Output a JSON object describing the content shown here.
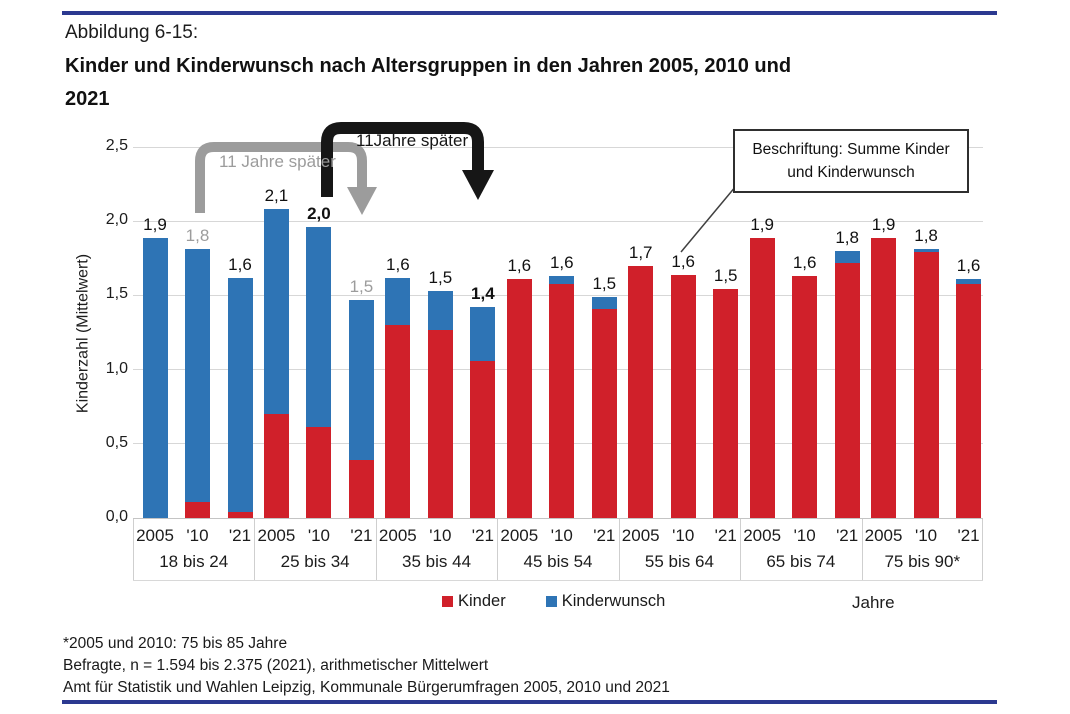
{
  "page": {
    "figure_label": "Abbildung 6-15:",
    "title_line1": "Kinder und Kinderwunsch nach Altersgruppen in den Jahren 2005, 2010 und",
    "title_line2": "2021",
    "footnotes": [
      "*2005 und 2010: 75 bis 85 Jahre",
      "Befragte, n = 1.594 bis 2.375 (2021), arithmetischer Mittelwert",
      "Amt für Statistik und Wahlen Leipzig, Kommunale Bürgerumfragen 2005, 2010 und 2021"
    ]
  },
  "chart_data": {
    "type": "bar",
    "stacked": true,
    "title": "Kinder und Kinderwunsch nach Altersgruppen in den Jahren 2005, 2010 und 2021",
    "ylabel": "Kinderzahl (Mittelwert)",
    "xlabel": "Jahre",
    "ylim": [
      0,
      2.5
    ],
    "ytick_labels": [
      "0,0",
      "0,5",
      "1,0",
      "1,5",
      "2,0",
      "2,5"
    ],
    "grid": true,
    "legend_position": "bottom",
    "legend": [
      {
        "name": "Kinder",
        "color": "#d0202a"
      },
      {
        "name": "Kinderwunsch",
        "color": "#2e74b5"
      }
    ],
    "groups": [
      {
        "label": "18 bis 24",
        "bars": [
          {
            "year": "2005",
            "kinder": 0.0,
            "kinderwunsch": 1.89,
            "total_label": "1,9"
          },
          {
            "year": "'10",
            "kinder": 0.11,
            "kinderwunsch": 1.7,
            "total_label": "1,8",
            "emphasis": "gray"
          },
          {
            "year": "'21",
            "kinder": 0.04,
            "kinderwunsch": 1.58,
            "total_label": "1,6"
          }
        ]
      },
      {
        "label": "25 bis 34",
        "bars": [
          {
            "year": "2005",
            "kinder": 0.7,
            "kinderwunsch": 1.38,
            "total_label": "2,1"
          },
          {
            "year": "'10",
            "kinder": 0.61,
            "kinderwunsch": 1.35,
            "total_label": "2,0",
            "emphasis": "bold"
          },
          {
            "year": "'21",
            "kinder": 0.39,
            "kinderwunsch": 1.08,
            "total_label": "1,5",
            "emphasis": "gray"
          }
        ]
      },
      {
        "label": "35 bis 44",
        "bars": [
          {
            "year": "2005",
            "kinder": 1.3,
            "kinderwunsch": 0.32,
            "total_label": "1,6"
          },
          {
            "year": "'10",
            "kinder": 1.27,
            "kinderwunsch": 0.26,
            "total_label": "1,5"
          },
          {
            "year": "'21",
            "kinder": 1.06,
            "kinderwunsch": 0.36,
            "total_label": "1,4",
            "emphasis": "bold"
          }
        ]
      },
      {
        "label": "45 bis 54",
        "bars": [
          {
            "year": "2005",
            "kinder": 1.61,
            "kinderwunsch": 0.0,
            "total_label": "1,6"
          },
          {
            "year": "'10",
            "kinder": 1.58,
            "kinderwunsch": 0.05,
            "total_label": "1,6"
          },
          {
            "year": "'21",
            "kinder": 1.41,
            "kinderwunsch": 0.08,
            "total_label": "1,5"
          }
        ]
      },
      {
        "label": "55 bis 64",
        "bars": [
          {
            "year": "2005",
            "kinder": 1.7,
            "kinderwunsch": 0.0,
            "total_label": "1,7"
          },
          {
            "year": "'10",
            "kinder": 1.64,
            "kinderwunsch": 0.0,
            "total_label": "1,6"
          },
          {
            "year": "'21",
            "kinder": 1.54,
            "kinderwunsch": 0.0,
            "total_label": "1,5"
          }
        ]
      },
      {
        "label": "65 bis 74",
        "bars": [
          {
            "year": "2005",
            "kinder": 1.89,
            "kinderwunsch": 0.0,
            "total_label": "1,9"
          },
          {
            "year": "'10",
            "kinder": 1.63,
            "kinderwunsch": 0.0,
            "total_label": "1,6"
          },
          {
            "year": "'21",
            "kinder": 1.72,
            "kinderwunsch": 0.08,
            "total_label": "1,8"
          }
        ]
      },
      {
        "label": "75 bis 90*",
        "bars": [
          {
            "year": "2005",
            "kinder": 1.89,
            "kinderwunsch": 0.0,
            "total_label": "1,9"
          },
          {
            "year": "'10",
            "kinder": 1.79,
            "kinderwunsch": 0.02,
            "total_label": "1,8"
          },
          {
            "year": "'21",
            "kinder": 1.58,
            "kinderwunsch": 0.03,
            "total_label": "1,6"
          }
        ]
      }
    ],
    "annotations": [
      {
        "id": "gray-arrow",
        "label": "11 Jahre später",
        "from": "18 bis 24 '10",
        "to": "25 bis 34 '21",
        "color": "#9c9c9c"
      },
      {
        "id": "black-arrow",
        "label": "11Jahre später",
        "from": "25 bis 34 '10",
        "to": "35 bis 44 '21",
        "color": "#151515"
      },
      {
        "id": "callout",
        "label": "Beschriftung: Summe Kinder und Kinderwunsch",
        "points_to": "55 bis 64 '10"
      }
    ]
  }
}
